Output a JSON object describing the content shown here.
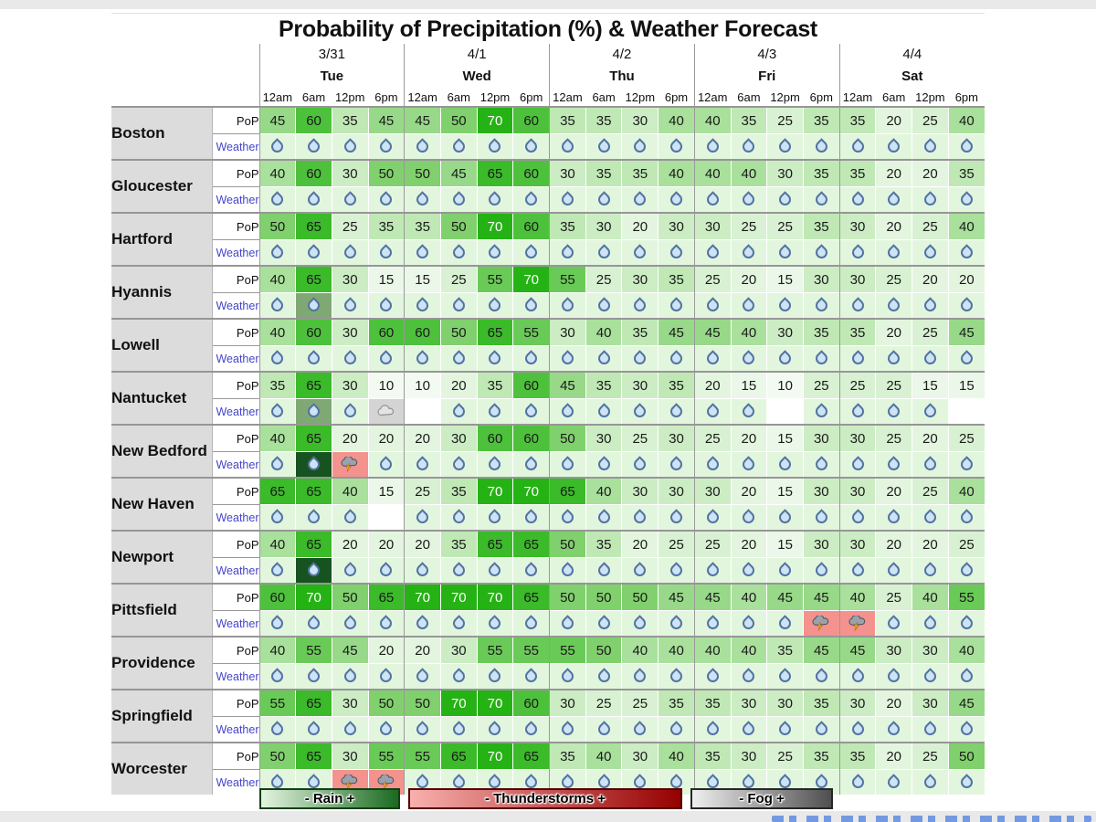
{
  "page": {
    "title": "Probability of Precipitation (%) & Weather Forecast"
  },
  "table": {
    "days": [
      {
        "date": "3/31",
        "day": "Tue"
      },
      {
        "date": "4/1",
        "day": "Wed"
      },
      {
        "date": "4/2",
        "day": "Thu"
      },
      {
        "date": "4/3",
        "day": "Fri"
      },
      {
        "date": "4/4",
        "day": "Sat"
      }
    ],
    "times": [
      "12am",
      "6am",
      "12pm",
      "6pm"
    ],
    "row_labels": {
      "pop": "PoP",
      "weather": "Weather"
    },
    "cities": [
      {
        "name": "Boston",
        "pop": [
          45,
          60,
          35,
          45,
          45,
          50,
          70,
          60,
          35,
          35,
          30,
          40,
          40,
          35,
          25,
          35,
          35,
          20,
          25,
          40
        ],
        "weather": [
          "r",
          "r",
          "r",
          "r",
          "r",
          "r",
          "r",
          "r",
          "r",
          "r",
          "r",
          "r",
          "r",
          "r",
          "r",
          "r",
          "r",
          "r",
          "r",
          "r"
        ]
      },
      {
        "name": "Gloucester",
        "pop": [
          40,
          60,
          30,
          50,
          50,
          45,
          65,
          60,
          30,
          35,
          35,
          40,
          40,
          40,
          30,
          35,
          35,
          20,
          20,
          35
        ],
        "weather": [
          "r",
          "r",
          "r",
          "r",
          "r",
          "r",
          "r",
          "r",
          "r",
          "r",
          "r",
          "r",
          "r",
          "r",
          "r",
          "r",
          "r",
          "r",
          "r",
          "r"
        ]
      },
      {
        "name": "Hartford",
        "pop": [
          50,
          65,
          25,
          35,
          35,
          50,
          70,
          60,
          35,
          30,
          20,
          30,
          30,
          25,
          25,
          35,
          30,
          20,
          25,
          40
        ],
        "weather": [
          "r",
          "r",
          "r",
          "r",
          "r",
          "r",
          "r",
          "r",
          "r",
          "r",
          "r",
          "r",
          "r",
          "r",
          "r",
          "r",
          "r",
          "r",
          "r",
          "r"
        ]
      },
      {
        "name": "Hyannis",
        "pop": [
          40,
          65,
          30,
          15,
          15,
          25,
          55,
          70,
          55,
          25,
          30,
          35,
          25,
          20,
          15,
          30,
          30,
          25,
          20,
          20
        ],
        "weather": [
          "r",
          "r2",
          "r",
          "r",
          "r",
          "r",
          "r",
          "r",
          "r",
          "r",
          "r",
          "r",
          "r",
          "r",
          "r",
          "r",
          "r",
          "r",
          "r",
          "r"
        ]
      },
      {
        "name": "Lowell",
        "pop": [
          40,
          60,
          30,
          60,
          60,
          50,
          65,
          55,
          30,
          40,
          35,
          45,
          45,
          40,
          30,
          35,
          35,
          20,
          25,
          45
        ],
        "weather": [
          "r",
          "r",
          "r",
          "r",
          "r",
          "r",
          "r",
          "r",
          "r",
          "r",
          "r",
          "r",
          "r",
          "r",
          "r",
          "r",
          "r",
          "r",
          "r",
          "r"
        ]
      },
      {
        "name": "Nantucket",
        "pop": [
          35,
          65,
          30,
          10,
          10,
          20,
          35,
          60,
          45,
          35,
          30,
          35,
          20,
          15,
          10,
          25,
          25,
          25,
          15,
          15
        ],
        "weather": [
          "r",
          "r2",
          "r",
          "f",
          "",
          "r",
          "r",
          "r",
          "r",
          "r",
          "r",
          "r",
          "r",
          "r",
          "",
          "r",
          "r",
          "r",
          "r",
          ""
        ]
      },
      {
        "name": "New Bedford",
        "pop": [
          40,
          65,
          20,
          20,
          20,
          30,
          60,
          60,
          50,
          30,
          25,
          30,
          25,
          20,
          15,
          30,
          30,
          25,
          20,
          25
        ],
        "weather": [
          "r",
          "r3",
          "t",
          "r",
          "r",
          "r",
          "r",
          "r",
          "r",
          "r",
          "r",
          "r",
          "r",
          "r",
          "r",
          "r",
          "r",
          "r",
          "r",
          "r"
        ]
      },
      {
        "name": "New Haven",
        "pop": [
          65,
          65,
          40,
          15,
          25,
          35,
          70,
          70,
          65,
          40,
          30,
          30,
          30,
          20,
          15,
          30,
          30,
          20,
          25,
          40
        ],
        "weather": [
          "r",
          "r",
          "r",
          "",
          "r",
          "r",
          "r",
          "r",
          "r",
          "r",
          "r",
          "r",
          "r",
          "r",
          "r",
          "r",
          "r",
          "r",
          "r",
          "r"
        ]
      },
      {
        "name": "Newport",
        "pop": [
          40,
          65,
          20,
          20,
          20,
          35,
          65,
          65,
          50,
          35,
          20,
          25,
          25,
          20,
          15,
          30,
          30,
          20,
          20,
          25
        ],
        "weather": [
          "r",
          "r3",
          "r",
          "r",
          "r",
          "r",
          "r",
          "r",
          "r",
          "r",
          "r",
          "r",
          "r",
          "r",
          "r",
          "r",
          "r",
          "r",
          "r",
          "r"
        ]
      },
      {
        "name": "Pittsfield",
        "pop": [
          60,
          70,
          50,
          65,
          70,
          70,
          70,
          65,
          50,
          50,
          50,
          45,
          45,
          40,
          45,
          45,
          40,
          25,
          40,
          55
        ],
        "weather": [
          "r",
          "r",
          "r",
          "r",
          "r",
          "r",
          "r",
          "r",
          "r",
          "r",
          "r",
          "r",
          "r",
          "r",
          "r",
          "t",
          "t",
          "r",
          "r",
          "r"
        ]
      },
      {
        "name": "Providence",
        "pop": [
          40,
          55,
          45,
          20,
          20,
          30,
          55,
          55,
          55,
          50,
          40,
          40,
          40,
          40,
          35,
          45,
          45,
          30,
          30,
          40
        ],
        "weather": [
          "r",
          "r",
          "r",
          "r",
          "r",
          "r",
          "r",
          "r",
          "r",
          "r",
          "r",
          "r",
          "r",
          "r",
          "r",
          "r",
          "r",
          "r",
          "r",
          "r"
        ]
      },
      {
        "name": "Springfield",
        "pop": [
          55,
          65,
          30,
          50,
          50,
          70,
          70,
          60,
          30,
          25,
          25,
          35,
          35,
          30,
          30,
          35,
          30,
          20,
          30,
          45
        ],
        "weather": [
          "r",
          "r",
          "r",
          "r",
          "r",
          "r",
          "r",
          "r",
          "r",
          "r",
          "r",
          "r",
          "r",
          "r",
          "r",
          "r",
          "r",
          "r",
          "r",
          "r"
        ]
      },
      {
        "name": "Worcester",
        "pop": [
          50,
          65,
          30,
          55,
          55,
          65,
          70,
          65,
          35,
          40,
          30,
          40,
          35,
          30,
          25,
          35,
          35,
          20,
          25,
          50
        ],
        "weather": [
          "r",
          "r",
          "t",
          "t",
          "r",
          "r",
          "r",
          "r",
          "r",
          "r",
          "r",
          "r",
          "r",
          "r",
          "r",
          "r",
          "r",
          "r",
          "r",
          "r"
        ]
      }
    ]
  },
  "legend": [
    {
      "label": "- Rain +",
      "type": "rain",
      "from": "#e4f5e1",
      "to": "#1a6a20",
      "border": "#123f14"
    },
    {
      "label": "- Thunderstorms +",
      "type": "thunderstorms",
      "from": "#f9b0ae",
      "to": "#950000",
      "border": "#550000"
    },
    {
      "label": "- Fog +",
      "type": "fog",
      "from": "#efefef",
      "to": "#4f4f4f",
      "border": "#262626"
    }
  ],
  "colors": {
    "pop_scale": {
      "10": "#f3faf1",
      "15": "#ebf7e8",
      "20": "#e3f5df",
      "25": "#d8f1d2",
      "30": "#ccecc4",
      "35": "#bfe8b5",
      "40": "#a9e09c",
      "45": "#97d988",
      "50": "#80d06d",
      "55": "#6aca57",
      "60": "#4ec13c",
      "65": "#3bba2a",
      "70": "#25b214"
    },
    "pop_text_high": "#ffffff",
    "weather_bg": {
      "r": "#e2f6de",
      "r2": "#7fa875",
      "r3": "#175320",
      "t": "#f4928e",
      "f": "#d4d4d4",
      "none": "#ffffff"
    },
    "city_bg": "#dcdcdc",
    "weather_link": "#4444cc",
    "grid": "#9a9a9a"
  }
}
